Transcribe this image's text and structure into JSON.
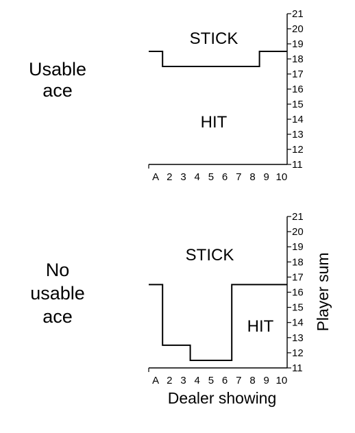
{
  "panels": [
    {
      "side_label": [
        "Usable",
        "ace"
      ],
      "region_top": "STICK",
      "region_bottom": "HIT",
      "boundary": [
        {
          "dealer": "A",
          "threshold": 19
        },
        {
          "dealer": "2",
          "threshold": 18
        },
        {
          "dealer": "3",
          "threshold": 18
        },
        {
          "dealer": "4",
          "threshold": 18
        },
        {
          "dealer": "5",
          "threshold": 18
        },
        {
          "dealer": "6",
          "threshold": 18
        },
        {
          "dealer": "7",
          "threshold": 18
        },
        {
          "dealer": "8",
          "threshold": 18
        },
        {
          "dealer": "9",
          "threshold": 19
        },
        {
          "dealer": "10",
          "threshold": 19
        }
      ]
    },
    {
      "side_label": [
        "No",
        "usable",
        "ace"
      ],
      "region_top": "STICK",
      "region_bottom": "HIT",
      "boundary": [
        {
          "dealer": "A",
          "threshold": 17
        },
        {
          "dealer": "2",
          "threshold": 13
        },
        {
          "dealer": "3",
          "threshold": 13
        },
        {
          "dealer": "4",
          "threshold": 12
        },
        {
          "dealer": "5",
          "threshold": 12
        },
        {
          "dealer": "6",
          "threshold": 12
        },
        {
          "dealer": "7",
          "threshold": 17
        },
        {
          "dealer": "8",
          "threshold": 17
        },
        {
          "dealer": "9",
          "threshold": 17
        },
        {
          "dealer": "10",
          "threshold": 17
        }
      ]
    }
  ],
  "x_ticks": [
    "A",
    "2",
    "3",
    "4",
    "5",
    "6",
    "7",
    "8",
    "9",
    "10"
  ],
  "y_ticks": [
    "11",
    "12",
    "13",
    "14",
    "15",
    "16",
    "17",
    "18",
    "19",
    "20",
    "21"
  ],
  "x_axis_label": "Dealer showing",
  "y_axis_label": "Player sum"
}
